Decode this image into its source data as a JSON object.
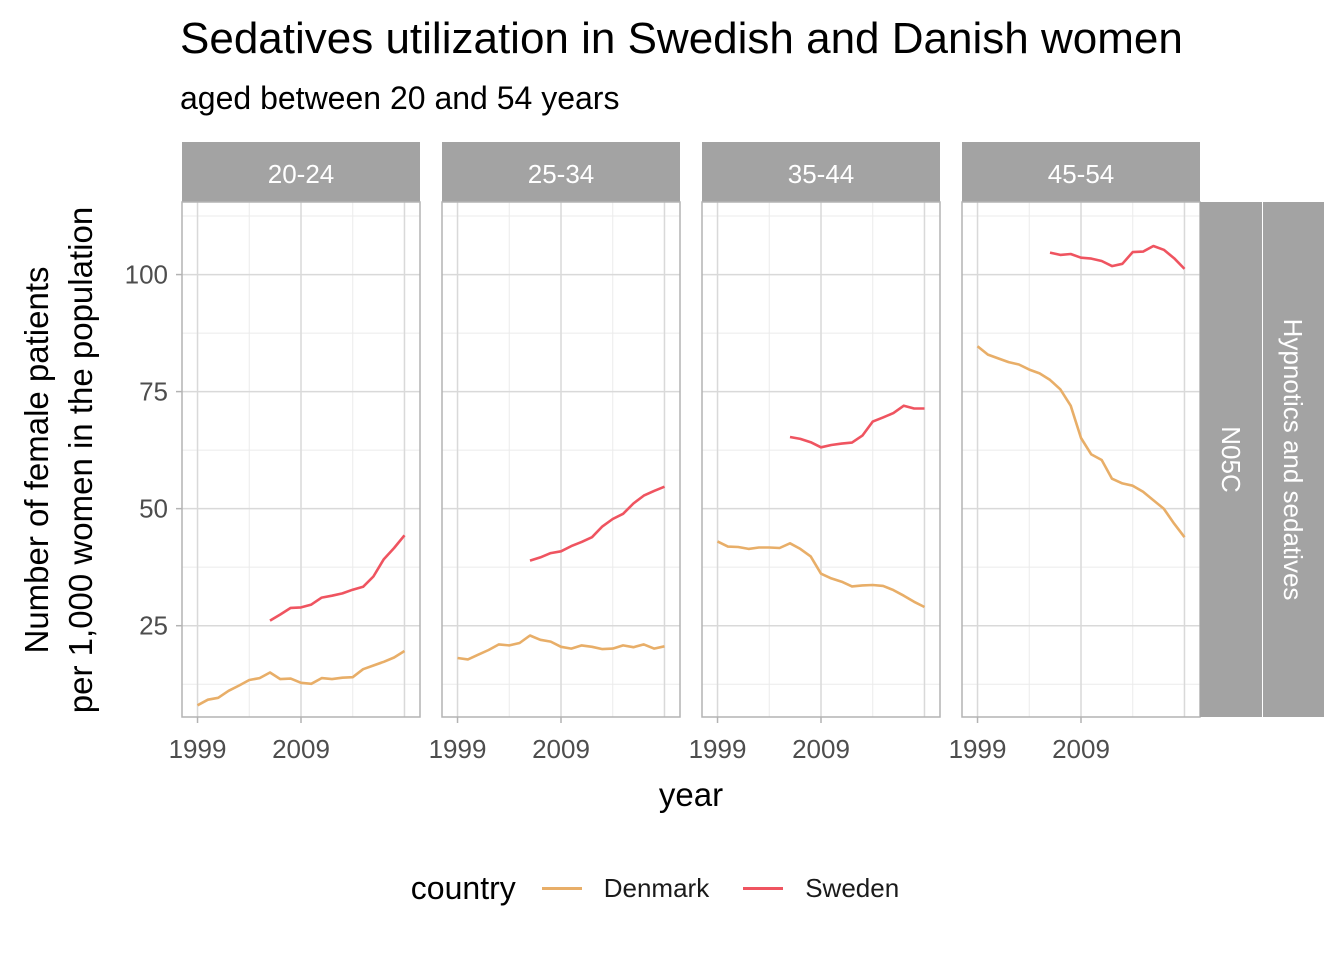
{
  "title": "Sedatives utilization in Swedish and Danish women",
  "subtitle": "aged between 20 and 54 years",
  "legend": {
    "title": "country",
    "items": [
      {
        "label": "Denmark",
        "color": "#E8AE68"
      },
      {
        "label": "Sweden",
        "color": "#EF5460"
      }
    ]
  },
  "chart_data": {
    "type": "line",
    "title": "Sedatives utilization in Swedish and Danish women",
    "subtitle": "aged between 20 and 54 years",
    "xlabel": "year",
    "ylabel": "Number of female patients\nper 1,000 women in the population",
    "ylabel_lines": [
      "Number of female patients",
      "per 1,000 women in the population"
    ],
    "xlim": [
      1997.5,
      2020.5
    ],
    "ylim": [
      5.5,
      115.5
    ],
    "x_ticks": [
      1999,
      2009
    ],
    "y_ticks": [
      25,
      50,
      75,
      100
    ],
    "grid": true,
    "legend_position": "bottom",
    "row_strips": [
      "N05C",
      "Hypnotics and sedatives"
    ],
    "facets": [
      {
        "strip": "20-24",
        "series": [
          {
            "name": "Denmark",
            "color": "#E8AE68",
            "x": [
              1999,
              2000,
              2001,
              2002,
              2003,
              2004,
              2005,
              2006,
              2007,
              2008,
              2009,
              2010,
              2011,
              2012,
              2013,
              2014,
              2015,
              2016,
              2017,
              2018,
              2019
            ],
            "y": [
              8.0,
              9.2,
              9.6,
              11.1,
              12.2,
              13.4,
              13.8,
              15.0,
              13.6,
              13.7,
              12.8,
              12.6,
              13.8,
              13.6,
              13.9,
              14.0,
              15.7,
              16.5,
              17.3,
              18.2,
              19.6
            ]
          },
          {
            "name": "Sweden",
            "color": "#EF5460",
            "x": [
              2006,
              2007,
              2008,
              2009,
              2010,
              2011,
              2012,
              2013,
              2014,
              2015,
              2016,
              2017,
              2018,
              2019
            ],
            "y": [
              26.1,
              27.4,
              28.8,
              28.9,
              29.5,
              31.0,
              31.4,
              31.9,
              32.7,
              33.3,
              35.5,
              39.2,
              41.6,
              44.3
            ]
          }
        ]
      },
      {
        "strip": "25-34",
        "series": [
          {
            "name": "Denmark",
            "color": "#E8AE68",
            "x": [
              1999,
              2000,
              2001,
              2002,
              2003,
              2004,
              2005,
              2006,
              2007,
              2008,
              2009,
              2010,
              2011,
              2012,
              2013,
              2014,
              2015,
              2016,
              2017,
              2018,
              2019
            ],
            "y": [
              18.1,
              17.8,
              18.8,
              19.8,
              21.0,
              20.8,
              21.3,
              22.9,
              22.0,
              21.6,
              20.5,
              20.1,
              20.8,
              20.5,
              20.0,
              20.1,
              20.8,
              20.4,
              21.0,
              20.1,
              20.6
            ]
          },
          {
            "name": "Sweden",
            "color": "#EF5460",
            "x": [
              2006,
              2007,
              2008,
              2009,
              2010,
              2011,
              2012,
              2013,
              2014,
              2015,
              2016,
              2017,
              2018,
              2019
            ],
            "y": [
              38.9,
              39.6,
              40.5,
              40.9,
              42.0,
              42.9,
              43.9,
              46.2,
              47.8,
              48.9,
              51.1,
              52.8,
              53.8,
              54.7
            ]
          }
        ]
      },
      {
        "strip": "35-44",
        "series": [
          {
            "name": "Denmark",
            "color": "#E8AE68",
            "x": [
              1999,
              2000,
              2001,
              2002,
              2003,
              2004,
              2005,
              2006,
              2007,
              2008,
              2009,
              2010,
              2011,
              2012,
              2013,
              2014,
              2015,
              2016,
              2017,
              2018,
              2019
            ],
            "y": [
              43.0,
              41.9,
              41.8,
              41.4,
              41.7,
              41.7,
              41.6,
              42.6,
              41.4,
              39.8,
              36.1,
              35.1,
              34.4,
              33.4,
              33.6,
              33.7,
              33.5,
              32.6,
              31.4,
              30.1,
              29.0
            ]
          },
          {
            "name": "Sweden",
            "color": "#EF5460",
            "x": [
              2006,
              2007,
              2008,
              2009,
              2010,
              2011,
              2012,
              2013,
              2014,
              2015,
              2016,
              2017,
              2018,
              2019
            ],
            "y": [
              65.3,
              64.9,
              64.2,
              63.1,
              63.6,
              63.9,
              64.1,
              65.6,
              68.6,
              69.5,
              70.4,
              72.0,
              71.4,
              71.4
            ]
          }
        ]
      },
      {
        "strip": "45-54",
        "series": [
          {
            "name": "Denmark",
            "color": "#E8AE68",
            "x": [
              1999,
              2000,
              2001,
              2002,
              2003,
              2004,
              2005,
              2006,
              2007,
              2008,
              2009,
              2010,
              2011,
              2012,
              2013,
              2014,
              2015,
              2016,
              2017,
              2018,
              2019
            ],
            "y": [
              84.7,
              82.9,
              82.1,
              81.3,
              80.8,
              79.7,
              78.9,
              77.5,
              75.5,
              72.0,
              65.1,
              61.6,
              60.4,
              56.4,
              55.4,
              54.9,
              53.6,
              51.8,
              50.0,
              46.8,
              43.9
            ]
          },
          {
            "name": "Sweden",
            "color": "#EF5460",
            "x": [
              2006,
              2007,
              2008,
              2009,
              2010,
              2011,
              2012,
              2013,
              2014,
              2015,
              2016,
              2017,
              2018,
              2019
            ],
            "y": [
              104.7,
              104.2,
              104.4,
              103.6,
              103.4,
              102.9,
              101.8,
              102.3,
              104.8,
              104.9,
              106.1,
              105.3,
              103.5,
              101.2
            ]
          }
        ]
      }
    ]
  }
}
